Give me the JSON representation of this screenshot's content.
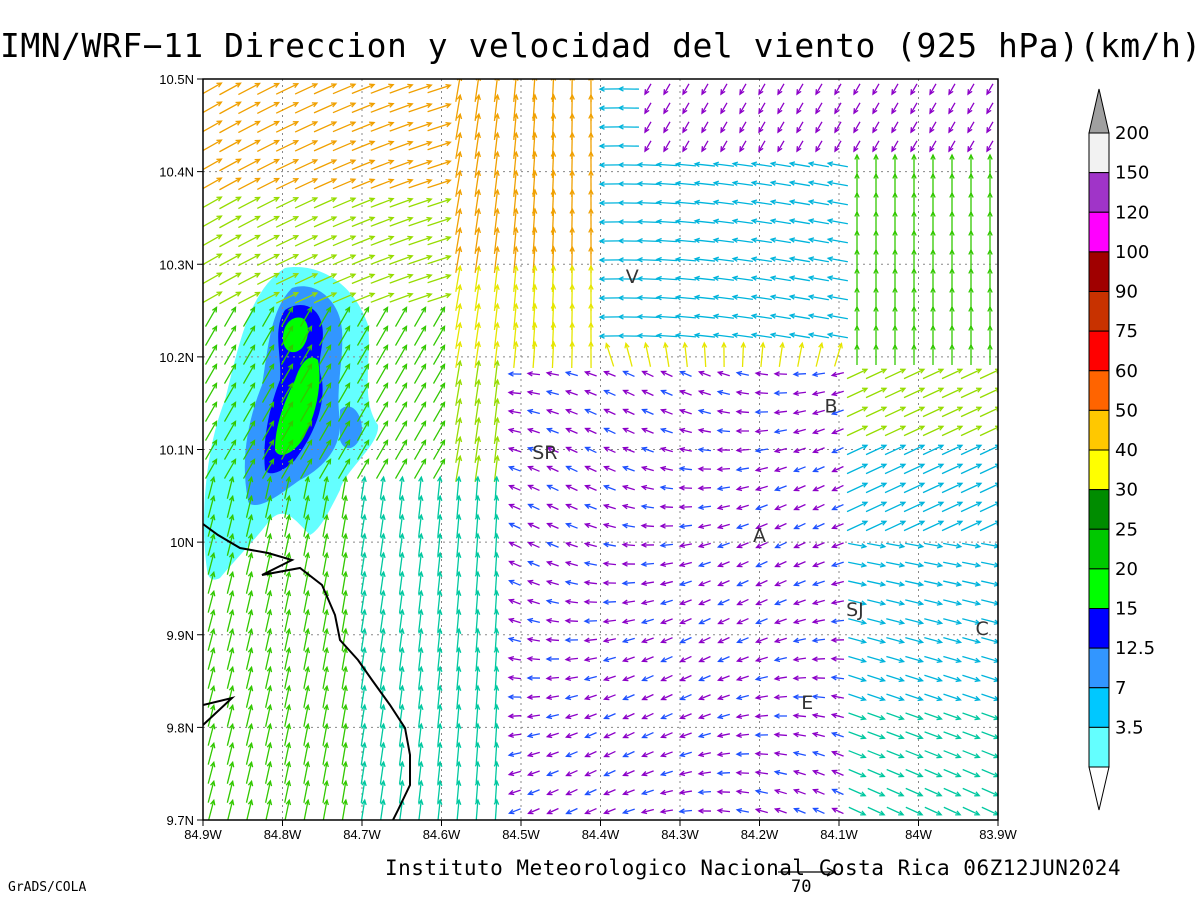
{
  "title": "IMN/WRF−11 Direccion y velocidad del viento (925 hPa)(km/h)",
  "footer": "Instituto Meteorologico Nacional Costa Rica 06Z12JUN2024",
  "credit": "GrADS/COLA",
  "reference_vector": {
    "label": "70",
    "speed_kmh": 70
  },
  "axes": {
    "x_ticks": [
      "84.9W",
      "84.8W",
      "84.7W",
      "84.6W",
      "84.5W",
      "84.4W",
      "84.3W",
      "84.2W",
      "84.1W",
      "84W",
      "83.9W"
    ],
    "y_ticks": [
      "10.5N",
      "10.4N",
      "10.3N",
      "10.2N",
      "10.1N",
      "10N",
      "9.9N",
      "9.8N",
      "9.7N"
    ],
    "lon_range": [
      -84.9,
      -83.9
    ],
    "lat_range": [
      9.7,
      10.5
    ],
    "grid": true
  },
  "legend": {
    "labels": [
      "200",
      "150",
      "120",
      "100",
      "90",
      "75",
      "60",
      "50",
      "40",
      "30",
      "25",
      "20",
      "15",
      "12.5",
      "7",
      "3.5"
    ],
    "colors": [
      "#f2f2f2",
      "#a034c8",
      "#ff00ff",
      "#a00000",
      "#c83200",
      "#ff0000",
      "#ff6400",
      "#ffc800",
      "#ffff00",
      "#008c00",
      "#00c800",
      "#00ff00",
      "#0000ff",
      "#3296ff",
      "#00c8ff",
      "#64ffff"
    ],
    "overflow_color": "#a0a0a0"
  },
  "cities": [
    {
      "label": "V",
      "lon": -84.36,
      "lat": 10.28
    },
    {
      "label": "B",
      "lon": -84.11,
      "lat": 10.14
    },
    {
      "label": "SR",
      "lon": -84.47,
      "lat": 10.09
    },
    {
      "label": "A",
      "lon": -84.2,
      "lat": 10.0
    },
    {
      "label": "SJ",
      "lon": -84.08,
      "lat": 9.92
    },
    {
      "label": "C",
      "lon": -83.92,
      "lat": 9.9
    },
    {
      "label": "E",
      "lon": -84.14,
      "lat": 9.82
    }
  ],
  "precip_contours": {
    "levels": [
      {
        "level": "3.5",
        "color": "#64ffff"
      },
      {
        "level": "7",
        "color": "#3296ff"
      },
      {
        "level": "12.5",
        "color": "#0000ff"
      },
      {
        "level": "15",
        "color": "#00ff00"
      }
    ]
  },
  "wind_colors": {
    "purple": "#8c00c8",
    "blue": "#1e50ff",
    "cyan": "#00b4dc",
    "teal": "#00c8a0",
    "green": "#32c800",
    "lime": "#96dc00",
    "yellow": "#e6e600",
    "orange": "#f0a000",
    "red": "#ff3c00"
  }
}
